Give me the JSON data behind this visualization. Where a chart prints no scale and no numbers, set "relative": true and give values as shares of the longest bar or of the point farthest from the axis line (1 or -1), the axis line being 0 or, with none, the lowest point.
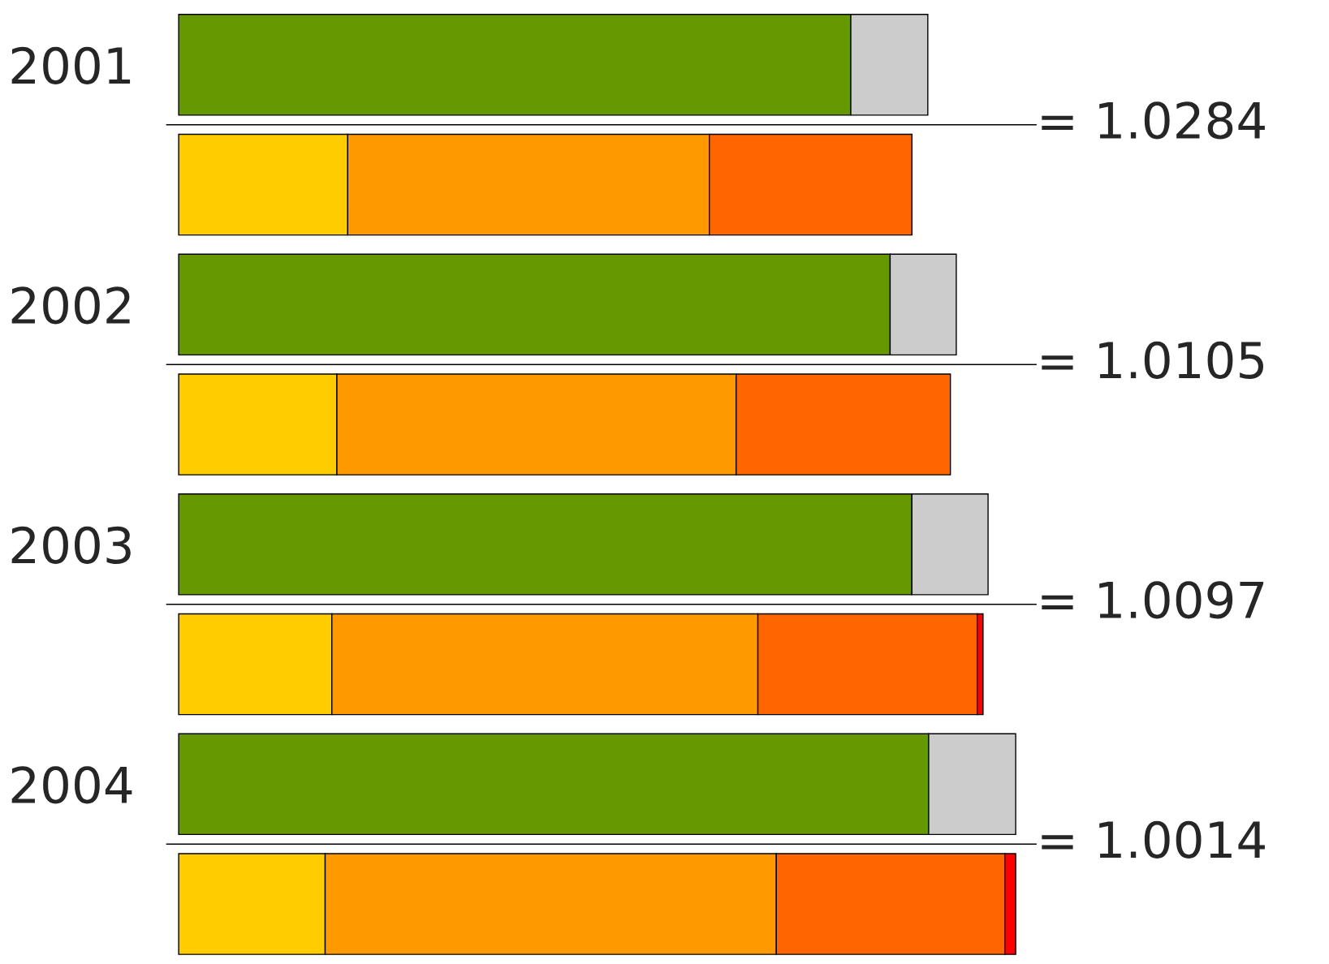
{
  "chart_data": {
    "type": "bar",
    "orientation": "horizontal",
    "stacked": true,
    "relative": true,
    "categories": [
      "2001",
      null,
      "2002",
      null,
      "2003",
      null,
      "2004",
      null
    ],
    "series": [
      {
        "color": "#669900",
        "values": [
          0.803,
          null,
          0.85,
          null,
          0.876,
          null,
          0.896,
          null
        ]
      },
      {
        "color": "#cccccc",
        "values": [
          0.092,
          null,
          0.079,
          null,
          0.091,
          null,
          0.104,
          null
        ]
      },
      {
        "color": "#ffcc00",
        "values": [
          null,
          0.202,
          null,
          0.189,
          null,
          0.183,
          null,
          0.175
        ]
      },
      {
        "color": "#ff9900",
        "values": [
          null,
          0.432,
          null,
          0.477,
          null,
          0.509,
          null,
          0.539
        ]
      },
      {
        "color": "#ff6600",
        "values": [
          null,
          0.242,
          null,
          0.256,
          null,
          0.262,
          null,
          0.273
        ]
      },
      {
        "color": "#ff0000",
        "values": [
          null,
          null,
          null,
          null,
          null,
          0.007,
          null,
          0.013
        ]
      }
    ],
    "annotations": [
      "= 1.0284",
      "= 1.0105",
      "= 1.0097",
      "= 1.0014"
    ],
    "grid": false,
    "legend": false
  }
}
